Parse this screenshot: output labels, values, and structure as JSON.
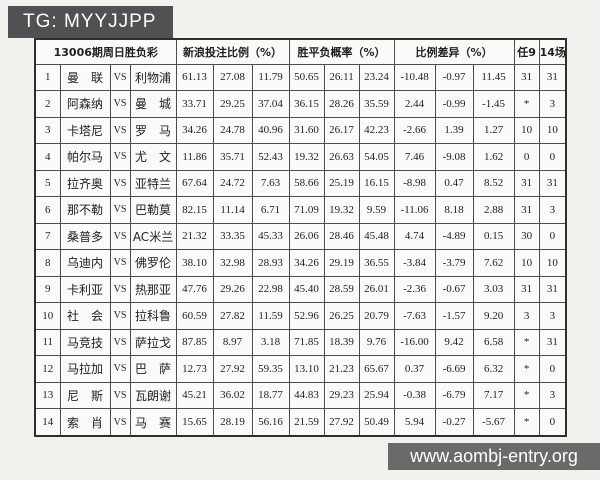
{
  "badge": {
    "text": "TG: MYYJJPP"
  },
  "watermark": {
    "url": "www.aombj-entry.org"
  },
  "colors": {
    "badge_bg": "#515153",
    "watermark_bg": "#6a6a6a",
    "negative_value": "#a8524f",
    "table_bg": "#fbfaf8"
  },
  "table": {
    "title": "13006期周日胜负彩",
    "headers": {
      "bet": "新浪投注比例（%）",
      "prob": "胜平负概率（%）",
      "diff": "比例差异（%）",
      "ren9": "任9",
      "c14": "14场"
    },
    "vs_label": "VS",
    "rows": [
      {
        "num": "1",
        "home": "曼　联",
        "away": "利物浦",
        "bet": [
          "61.13",
          "27.08",
          "11.79"
        ],
        "prob": [
          "50.65",
          "26.11",
          "23.24"
        ],
        "diff": [
          "-10.48",
          "-0.97",
          "11.45"
        ],
        "ren9": "31",
        "c14": "31"
      },
      {
        "num": "2",
        "home": "阿森纳",
        "away": "曼　城",
        "bet": [
          "33.71",
          "29.25",
          "37.04"
        ],
        "prob": [
          "36.15",
          "28.26",
          "35.59"
        ],
        "diff": [
          "2.44",
          "-0.99",
          "-1.45"
        ],
        "ren9": "*",
        "c14": "3"
      },
      {
        "num": "3",
        "home": "卡塔尼",
        "away": "罗　马",
        "bet": [
          "34.26",
          "24.78",
          "40.96"
        ],
        "prob": [
          "31.60",
          "26.17",
          "42.23"
        ],
        "diff": [
          "-2.66",
          "1.39",
          "1.27"
        ],
        "ren9": "10",
        "c14": "10"
      },
      {
        "num": "4",
        "home": "帕尔马",
        "away": "尤　文",
        "bet": [
          "11.86",
          "35.71",
          "52.43"
        ],
        "prob": [
          "19.32",
          "26.63",
          "54.05"
        ],
        "diff": [
          "7.46",
          "-9.08",
          "1.62"
        ],
        "ren9": "0",
        "c14": "0"
      },
      {
        "num": "5",
        "home": "拉齐奥",
        "away": "亚特兰",
        "bet": [
          "67.64",
          "24.72",
          "7.63"
        ],
        "prob": [
          "58.66",
          "25.19",
          "16.15"
        ],
        "diff": [
          "-8.98",
          "0.47",
          "8.52"
        ],
        "ren9": "31",
        "c14": "31"
      },
      {
        "num": "6",
        "home": "那不勒",
        "away": "巴勒莫",
        "bet": [
          "82.15",
          "11.14",
          "6.71"
        ],
        "prob": [
          "71.09",
          "19.32",
          "9.59"
        ],
        "diff": [
          "-11.06",
          "8.18",
          "2.88"
        ],
        "ren9": "31",
        "c14": "3"
      },
      {
        "num": "7",
        "home": "桑普多",
        "away": "AC米兰",
        "bet": [
          "21.32",
          "33.35",
          "45.33"
        ],
        "prob": [
          "26.06",
          "28.46",
          "45.48"
        ],
        "diff": [
          "4.74",
          "-4.89",
          "0.15"
        ],
        "ren9": "30",
        "c14": "0"
      },
      {
        "num": "8",
        "home": "乌迪内",
        "away": "佛罗伦",
        "bet": [
          "38.10",
          "32.98",
          "28.93"
        ],
        "prob": [
          "34.26",
          "29.19",
          "36.55"
        ],
        "diff": [
          "-3.84",
          "-3.79",
          "7.62"
        ],
        "ren9": "10",
        "c14": "10"
      },
      {
        "num": "9",
        "home": "卡利亚",
        "away": "热那亚",
        "bet": [
          "47.76",
          "29.26",
          "22.98"
        ],
        "prob": [
          "45.40",
          "28.59",
          "26.01"
        ],
        "diff": [
          "-2.36",
          "-0.67",
          "3.03"
        ],
        "ren9": "31",
        "c14": "31"
      },
      {
        "num": "10",
        "home": "社　会",
        "away": "拉科鲁",
        "bet": [
          "60.59",
          "27.82",
          "11.59"
        ],
        "prob": [
          "52.96",
          "26.25",
          "20.79"
        ],
        "diff": [
          "-7.63",
          "-1.57",
          "9.20"
        ],
        "ren9": "3",
        "c14": "3"
      },
      {
        "num": "11",
        "home": "马竞技",
        "away": "萨拉戈",
        "bet": [
          "87.85",
          "8.97",
          "3.18"
        ],
        "prob": [
          "71.85",
          "18.39",
          "9.76"
        ],
        "diff": [
          "-16.00",
          "9.42",
          "6.58"
        ],
        "ren9": "*",
        "c14": "31"
      },
      {
        "num": "12",
        "home": "马拉加",
        "away": "巴　萨",
        "bet": [
          "12.73",
          "27.92",
          "59.35"
        ],
        "prob": [
          "13.10",
          "21.23",
          "65.67"
        ],
        "diff": [
          "0.37",
          "-6.69",
          "6.32"
        ],
        "ren9": "*",
        "c14": "0"
      },
      {
        "num": "13",
        "home": "尼　斯",
        "away": "瓦朗谢",
        "bet": [
          "45.21",
          "36.02",
          "18.77"
        ],
        "prob": [
          "44.83",
          "29.23",
          "25.94"
        ],
        "diff": [
          "-0.38",
          "-6.79",
          "7.17"
        ],
        "ren9": "*",
        "c14": "3"
      },
      {
        "num": "14",
        "home": "索　肖",
        "away": "马　赛",
        "bet": [
          "15.65",
          "28.19",
          "56.16"
        ],
        "prob": [
          "21.59",
          "27.92",
          "50.49"
        ],
        "diff": [
          "5.94",
          "-0.27",
          "-5.67"
        ],
        "ren9": "*",
        "c14": "0"
      }
    ]
  }
}
